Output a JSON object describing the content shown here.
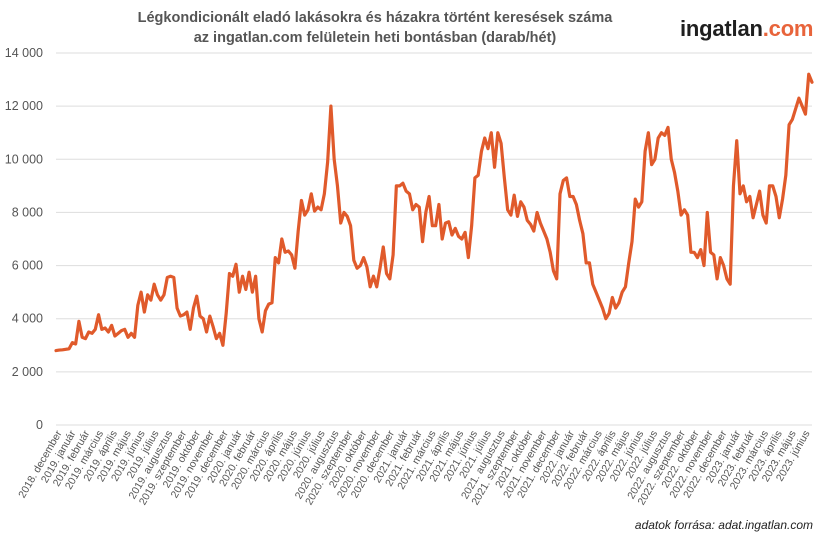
{
  "title": {
    "line1": "Légkondicionált eladó lakásokra és házakra történt keresések száma",
    "line2": "az ingatlan.com felületein heti bontásban (darab/hét)"
  },
  "logo": {
    "name": "ingatlan",
    "suffix": ".com"
  },
  "source": "adatok forrása: adat.ingatlan.com",
  "colors": {
    "line": "#e05a2b",
    "grid": "#dddddd",
    "text": "#555555"
  },
  "chart_data": {
    "type": "line",
    "ylim": [
      0,
      14000
    ],
    "yticks": [
      {
        "value": 0,
        "label": "0"
      },
      {
        "value": 2000,
        "label": "2 000"
      },
      {
        "value": 4000,
        "label": "4 000"
      },
      {
        "value": 6000,
        "label": "6 000"
      },
      {
        "value": 8000,
        "label": "8 000"
      },
      {
        "value": 10000,
        "label": "10 000"
      },
      {
        "value": 12000,
        "label": "12 000"
      },
      {
        "value": 14000,
        "label": "14 000"
      }
    ],
    "x_labels": [
      "2018. december",
      "2019. január",
      "2019. február",
      "2019. március",
      "2019. április",
      "2019. május",
      "2019. június",
      "2019. július",
      "2019. augusztus",
      "2019. szeptember",
      "2019. október",
      "2019. november",
      "2019. december",
      "2020. január",
      "2020. február",
      "2020. március",
      "2020. április",
      "2020. május",
      "2020. június",
      "2020. július",
      "2020. augusztus",
      "2020. szeptember",
      "2020. október",
      "2020. november",
      "2020. december",
      "2021. január",
      "2021. február",
      "2021. március",
      "2021. április",
      "2021. május",
      "2021. június",
      "2021. július",
      "2021. augusztus",
      "2021. szeptember",
      "2021. október",
      "2021. november",
      "2021. december",
      "2022. január",
      "2022. február",
      "2022. március",
      "2022. április",
      "2022. május",
      "2022. június",
      "2022. július",
      "2022. augusztus",
      "2022. szeptember",
      "2022. október",
      "2022. november",
      "2022. december",
      "2023. január",
      "2023. február",
      "2023. március",
      "2023. április",
      "2023. május",
      "2023. június"
    ],
    "grid": true,
    "series": [
      {
        "values": [
          2800,
          2820,
          2830,
          2850,
          2870,
          3100,
          3050,
          3900,
          3300,
          3250,
          3500,
          3450,
          3600,
          4150,
          3600,
          3650,
          3500,
          3750,
          3350,
          3450,
          3550,
          3600,
          3300,
          3450,
          3300,
          4500,
          5000,
          4250,
          4900,
          4700,
          5300,
          4900,
          4700,
          4900,
          5550,
          5600,
          5550,
          4400,
          4100,
          4150,
          4250,
          3600,
          4400,
          4850,
          4100,
          4000,
          3500,
          4100,
          3700,
          3250,
          3450,
          3000,
          4200,
          5700,
          5600,
          6050,
          5000,
          5600,
          5100,
          5750,
          5000,
          5600,
          4000,
          3500,
          4300,
          4550,
          4600,
          6300,
          6100,
          7000,
          6500,
          6550,
          6400,
          5900,
          7300,
          8450,
          7900,
          8100,
          8700,
          8050,
          8200,
          8100,
          8700,
          9900,
          12000,
          10000,
          9000,
          7600,
          8000,
          7850,
          7500,
          6200,
          5900,
          6000,
          6300,
          5950,
          5200,
          5600,
          5200,
          5900,
          6700,
          5700,
          5500,
          6400,
          9000,
          9000,
          9100,
          8800,
          8700,
          8100,
          8300,
          8200,
          6900,
          8000,
          8600,
          7500,
          7500,
          8300,
          7000,
          7600,
          7650,
          7150,
          7400,
          7100,
          7000,
          7250,
          6300,
          7500,
          9300,
          9400,
          10300,
          10800,
          10400,
          11000,
          9700,
          11000,
          10600,
          9300,
          8100,
          7900,
          8650,
          7850,
          8400,
          8200,
          7700,
          7550,
          7300,
          8000,
          7600,
          7300,
          7000,
          6500,
          5800,
          5500,
          8700,
          9200,
          9300,
          8600,
          8600,
          8300,
          7700,
          7200,
          6100,
          6100,
          5300,
          5000,
          4700,
          4400,
          4000,
          4200,
          4800,
          4400,
          4600,
          5000,
          5200,
          6100,
          6900,
          8500,
          8200,
          8400,
          10300,
          11000,
          9800,
          10000,
          10800,
          11000,
          10900,
          11200,
          10000,
          9500,
          8800,
          7900,
          8100,
          7900,
          6500,
          6500,
          6300,
          6600,
          6000,
          8000,
          6500,
          6400,
          5500,
          6300,
          6000,
          5500,
          5300,
          9000,
          10700,
          8700,
          9000,
          8400,
          8600,
          7800,
          8300,
          8800,
          7900,
          7600,
          9000,
          9000,
          8600,
          7800,
          8500,
          9400,
          11300,
          11500,
          11900,
          12300,
          12000,
          11700,
          13200,
          12900
        ]
      }
    ]
  }
}
